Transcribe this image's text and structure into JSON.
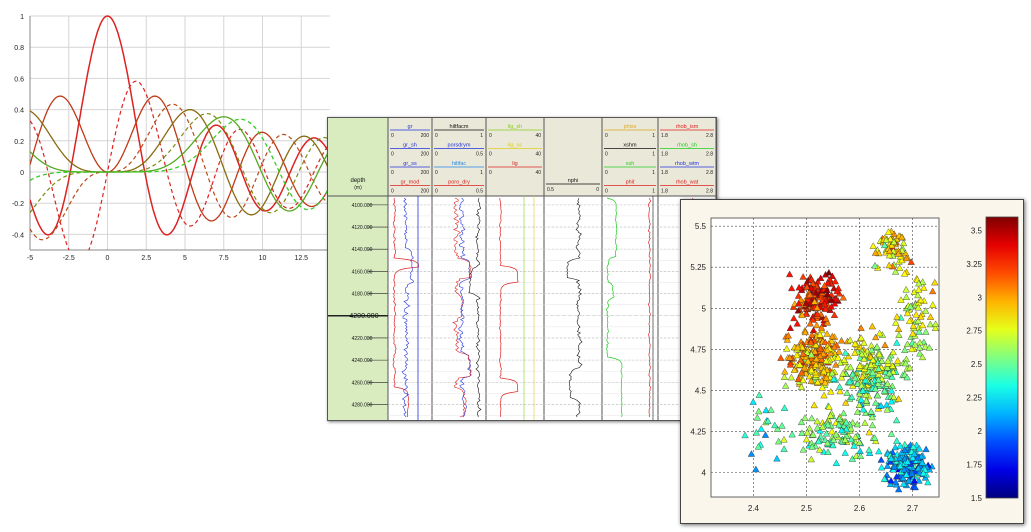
{
  "colors": {
    "red": "#dd2222",
    "dark_red": "#b03018",
    "olive": "#8a6a10",
    "green": "#33aa22",
    "bright_green": "#22cc22",
    "blue": "#2233dd",
    "black": "#111111",
    "depth_track_bg": "#d8ecc0",
    "header_bg": "#eae8d8"
  },
  "bessel_plot": {
    "chart_data": {
      "type": "line",
      "xlim": [
        -5,
        15
      ],
      "ylim": [
        -0.5,
        1
      ],
      "x_ticks": [
        "-5",
        "-2.5",
        "0",
        "2.5",
        "5",
        "7.5",
        "10",
        "12.5"
      ],
      "y_ticks": [
        "1",
        "0.8",
        "0.6",
        "0.4",
        "0.2",
        "0",
        "-0.2",
        "-0.4"
      ],
      "grid": true,
      "series_styles": [
        "solid red",
        "dashed red",
        "solid dark red",
        "dashed dark red",
        "solid olive",
        "dashed olive",
        "solid green",
        "dashed green"
      ]
    }
  },
  "well_log": {
    "depth_header": "depth",
    "depth_unit": "(m)",
    "depth_ticks": [
      "4100.000",
      "4120.000",
      "4140.000",
      "4160.000",
      "4180.000",
      "4200.000",
      "4220.000",
      "4240.000",
      "4260.000",
      "4280.000"
    ],
    "highlight_depth": "4200.000",
    "tracks": [
      {
        "curves": [
          {
            "name": "gr",
            "min": "0",
            "max": "200",
            "color": "#2233dd"
          },
          {
            "name": "gr_sh",
            "min": "0",
            "max": "200",
            "color": "#2233dd"
          },
          {
            "name": "gr_ss",
            "min": "0",
            "max": "200",
            "color": "#2233dd"
          },
          {
            "name": "gr_mod",
            "min": "0",
            "max": "200",
            "color": "#dd2222"
          }
        ]
      },
      {
        "curves": [
          {
            "name": "hiltfacm",
            "min": "0",
            "max": "1",
            "color": "#111111"
          },
          {
            "name": "porsdrym",
            "min": "0",
            "max": "0.5",
            "color": "#2233dd"
          },
          {
            "name": "hiltfac",
            "min": "0",
            "max": "1",
            "color": "#2288ee"
          },
          {
            "name": "poro_dry",
            "min": "0",
            "max": "0.5",
            "color": "#dd2222"
          }
        ]
      },
      {
        "curves": [
          {
            "name": "lig_sh",
            "min": "0",
            "max": "40",
            "color": "#88cc22"
          },
          {
            "name": "lig_ss",
            "min": "0",
            "max": "40",
            "color": "#ddcc22"
          },
          {
            "name": "lig",
            "min": "0",
            "max": "40",
            "color": "#dd2222"
          }
        ]
      },
      {
        "curves": [
          {
            "name": "nphi",
            "min": "0.5",
            "max": "0",
            "color": "#111111"
          }
        ]
      },
      {
        "curves": [
          {
            "name": "phiss",
            "min": "0",
            "max": "1",
            "color": "#ddaa22"
          },
          {
            "name": "xshm",
            "min": "0",
            "max": "1",
            "color": "#111111"
          },
          {
            "name": "xsh",
            "min": "0",
            "max": "1",
            "color": "#22cc22"
          },
          {
            "name": "phit",
            "min": "0",
            "max": "1",
            "color": "#dd2222"
          }
        ]
      },
      {
        "curves": [
          {
            "name": "rhob_ism",
            "min": "1.8",
            "max": "2.8",
            "color": "#dd2222"
          },
          {
            "name": "rhob_sh",
            "min": "1.8",
            "max": "2.8",
            "color": "#22cc22"
          },
          {
            "name": "rhob_wtm",
            "min": "1.8",
            "max": "2.8",
            "color": "#2233dd"
          },
          {
            "name": "rhob_wat",
            "min": "1.8",
            "max": "2.8",
            "color": "#dd2222"
          }
        ]
      }
    ]
  },
  "crossplot": {
    "chart_data": {
      "type": "scatter",
      "xlim": [
        2.32,
        2.75
      ],
      "ylim": [
        3.85,
        5.55
      ],
      "x_ticks": [
        "2.4",
        "2.5",
        "2.6",
        "2.7"
      ],
      "y_ticks": [
        "5.5",
        "5.25",
        "5",
        "4.75",
        "4.5",
        "4.25",
        "4"
      ],
      "marker": "triangle",
      "grid": true,
      "grid_style": "dotted",
      "colorbar": {
        "min": 1.5,
        "max": 3.6,
        "ticks": [
          "3.5",
          "3.25",
          "3",
          "2.75",
          "2.5",
          "2.25",
          "2",
          "1.75",
          "1.5"
        ],
        "colormap": "jet"
      }
    }
  }
}
